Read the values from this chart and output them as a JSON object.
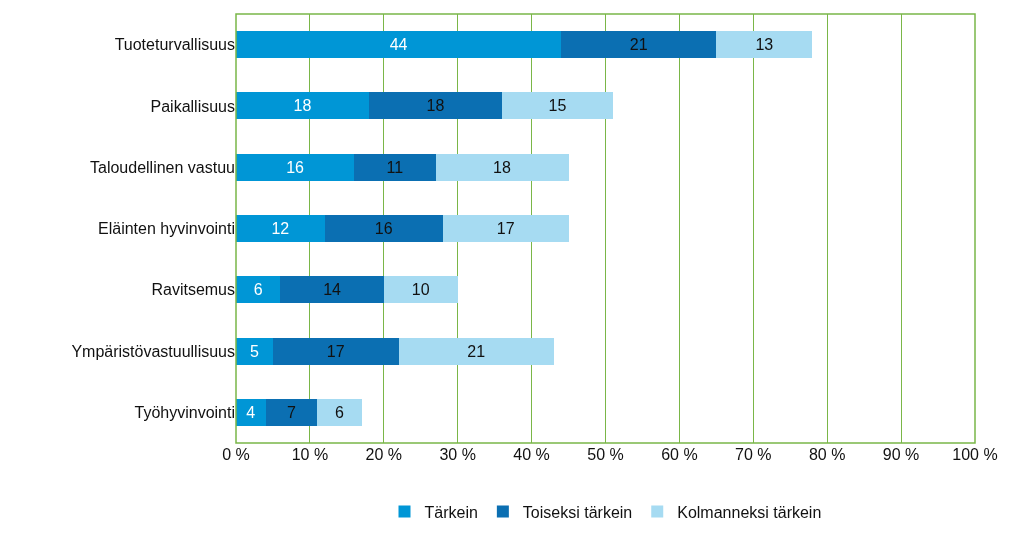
{
  "chart_data": {
    "type": "bar",
    "orientation": "horizontal",
    "stacked": true,
    "data_labels": true,
    "categories": [
      "Tuoteturvallisuus",
      "Paikallisuus",
      "Taloudellinen vastuu",
      "Eläinten hyvinvointi",
      "Ravitsemus",
      "Ympäristövastuullisuus",
      "Työhyvinvointi"
    ],
    "series": [
      {
        "name": "Tärkein",
        "color": "#0096d6",
        "values": [
          44,
          18,
          16,
          12,
          6,
          5,
          4
        ]
      },
      {
        "name": "Toiseksi tärkein",
        "color": "#0b6fb2",
        "values": [
          21,
          18,
          11,
          16,
          14,
          17,
          7
        ]
      },
      {
        "name": "Kolmanneksi tärkein",
        "color": "#a6dbf2",
        "values": [
          13,
          15,
          18,
          17,
          10,
          21,
          6
        ]
      }
    ],
    "xlim": [
      0,
      100
    ],
    "xticks": [
      {
        "value": 0,
        "label": "0 %"
      },
      {
        "value": 10,
        "label": "10 %"
      },
      {
        "value": 20,
        "label": "20 %"
      },
      {
        "value": 30,
        "label": "30 %"
      },
      {
        "value": 40,
        "label": "40 %"
      },
      {
        "value": 50,
        "label": "50 %"
      },
      {
        "value": 60,
        "label": "60 %"
      },
      {
        "value": 70,
        "label": "70 %"
      },
      {
        "value": 80,
        "label": "80 %"
      },
      {
        "value": 90,
        "label": "90 %"
      },
      {
        "value": 100,
        "label": "100 %"
      }
    ],
    "grid": "x",
    "legend": "bottom"
  }
}
